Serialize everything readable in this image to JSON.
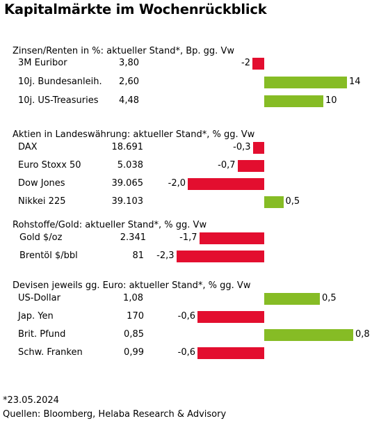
{
  "title": "Kapitalmärkte im Wochenrückblick",
  "colors": {
    "negative": "#e30e2f",
    "positive": "#86bc25"
  },
  "chart_data": [
    {
      "type": "bar",
      "title": "Zinsen/Renten in %: aktueller Stand*, Bp. gg. Vw",
      "unit_step": 1,
      "rows": [
        {
          "label": "3M Euribor",
          "value": "3,80",
          "change": -2,
          "change_label": "-2"
        },
        {
          "label": "10j. Bundesanleih.",
          "value": "2,60",
          "change": 14,
          "change_label": "14"
        },
        {
          "label": "10j. US-Treasuries",
          "value": "4,48",
          "change": 10,
          "change_label": "10"
        }
      ]
    },
    {
      "type": "bar",
      "title": "Aktien in Landeswährung: aktueller Stand*, % gg. Vw",
      "rows": [
        {
          "label": "DAX",
          "value": "18.691",
          "change": -0.3,
          "change_label": "-0,3"
        },
        {
          "label": "Euro Stoxx 50",
          "value": "5.038",
          "change": -0.7,
          "change_label": "-0,7"
        },
        {
          "label": "Dow Jones",
          "value": "39.065",
          "change": -2.0,
          "change_label": "-2,0"
        },
        {
          "label": "Nikkei 225",
          "value": "39.103",
          "change": 0.5,
          "change_label": "0,5"
        }
      ]
    },
    {
      "type": "bar",
      "title": "Rohstoffe/Gold: aktueller Stand*, % gg. Vw",
      "rows": [
        {
          "label": "Gold $/oz",
          "value": "2.341",
          "change": -1.7,
          "change_label": "-1,7"
        },
        {
          "label": "Brentöl $/bbl",
          "value": "81",
          "change": -2.3,
          "change_label": "-2,3"
        }
      ]
    },
    {
      "type": "bar",
      "title": "Devisen jeweils gg. Euro: aktueller Stand*, % gg. Vw",
      "rows": [
        {
          "label": "US-Dollar",
          "value": "1,08",
          "change": 0.5,
          "change_label": "0,5"
        },
        {
          "label": "Jap. Yen",
          "value": "170",
          "change": -0.6,
          "change_label": "-0,6"
        },
        {
          "label": "Brit. Pfund",
          "value": "0,85",
          "change": 0.8,
          "change_label": "0,8"
        },
        {
          "label": "Schw. Franken",
          "value": "0,99",
          "change": -0.6,
          "change_label": "-0,6"
        }
      ]
    }
  ],
  "footnotes": {
    "date": "*23.05.2024",
    "sources": "Quellen: Bloomberg, Helaba Research & Advisory"
  }
}
